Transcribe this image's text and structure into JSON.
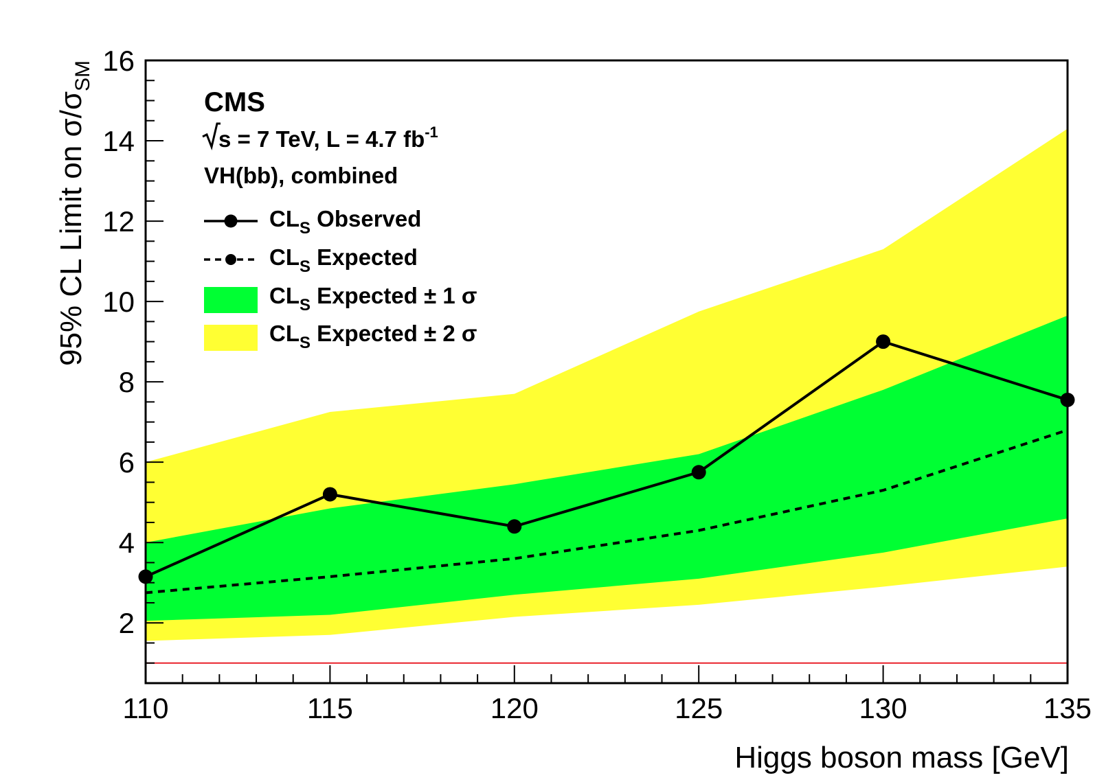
{
  "chart_data": {
    "type": "line",
    "experiment": "CMS",
    "energy_prefix": "s = 7 TeV, L = 4.7 fb",
    "energy_exponent": "-1",
    "channel": "VH(bb), combined",
    "xlabel": "Higgs boson mass [GeV]",
    "ylabel_main": "95% CL Limit on σ/σ",
    "ylabel_sub": "SM",
    "xlim": [
      110,
      135
    ],
    "ylim": [
      0.5,
      16
    ],
    "x_ticks": [
      110,
      115,
      120,
      125,
      130,
      135
    ],
    "y_ticks": [
      2,
      4,
      6,
      8,
      10,
      12,
      14,
      16
    ],
    "reference_line": {
      "y": 1,
      "color": "#e8202a"
    },
    "legend": [
      {
        "key": "observed",
        "prefix": "CL",
        "sub": "S",
        "suffix": " Observed"
      },
      {
        "key": "expected",
        "prefix": "CL",
        "sub": "S",
        "suffix": " Expected"
      },
      {
        "key": "band1",
        "prefix": "CL",
        "sub": "S",
        "suffix": " Expected ± 1 σ"
      },
      {
        "key": "band2",
        "prefix": "CL",
        "sub": "S",
        "suffix": " Expected ± 2 σ"
      }
    ],
    "x": [
      110,
      115,
      120,
      125,
      130,
      135
    ],
    "series": [
      {
        "key": "observed",
        "style": "solid",
        "color": "#000000",
        "values": [
          3.15,
          5.2,
          4.4,
          5.75,
          9.0,
          7.55
        ]
      },
      {
        "key": "expected",
        "style": "dashed",
        "color": "#000000",
        "values": [
          2.75,
          3.15,
          3.6,
          4.3,
          5.3,
          6.8
        ]
      },
      {
        "key": "band1",
        "color": "#00ff33",
        "lower": [
          2.05,
          2.2,
          2.7,
          3.1,
          3.75,
          4.6
        ],
        "upper": [
          4.0,
          4.85,
          5.45,
          6.2,
          7.8,
          9.65
        ]
      },
      {
        "key": "band2",
        "color": "#ffff33",
        "lower": [
          1.55,
          1.7,
          2.15,
          2.45,
          2.9,
          3.4
        ],
        "upper": [
          6.0,
          7.25,
          7.7,
          9.75,
          11.3,
          14.3
        ]
      }
    ],
    "grid": false,
    "legend_position": "top-left"
  }
}
